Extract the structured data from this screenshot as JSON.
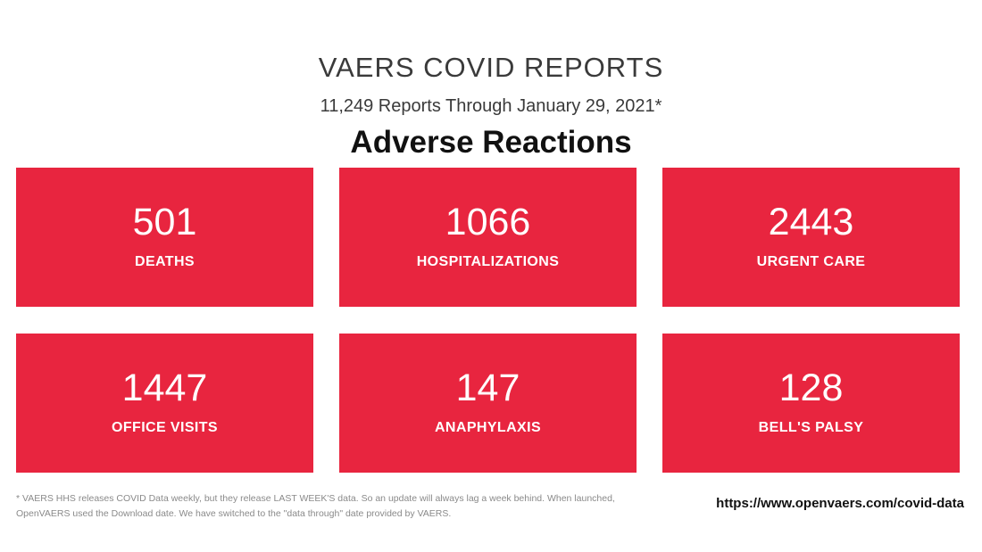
{
  "header": {
    "title": "VAERS COVID REPORTS",
    "subtitle": "11,249 Reports Through January 29, 2021*",
    "heading": "Adverse Reactions"
  },
  "cards": [
    {
      "value": "501",
      "label": "DEATHS"
    },
    {
      "value": "1066",
      "label": "HOSPITALIZATIONS"
    },
    {
      "value": "2443",
      "label": "URGENT CARE"
    },
    {
      "value": "1447",
      "label": "OFFICE VISITS"
    },
    {
      "value": "147",
      "label": "ANAPHYLAXIS"
    },
    {
      "value": "128",
      "label": "BELL'S PALSY"
    }
  ],
  "footer": {
    "note": "* VAERS HHS releases COVID Data weekly, but they release LAST WEEK'S data. So an update will always lag a week behind. When launched, OpenVAERS used the Download date. We have switched to the \"data through\" date provided by VAERS.",
    "url": "https://www.openvaers.com/covid-data"
  },
  "colors": {
    "card_background": "#e8253f",
    "card_text": "#ffffff"
  }
}
